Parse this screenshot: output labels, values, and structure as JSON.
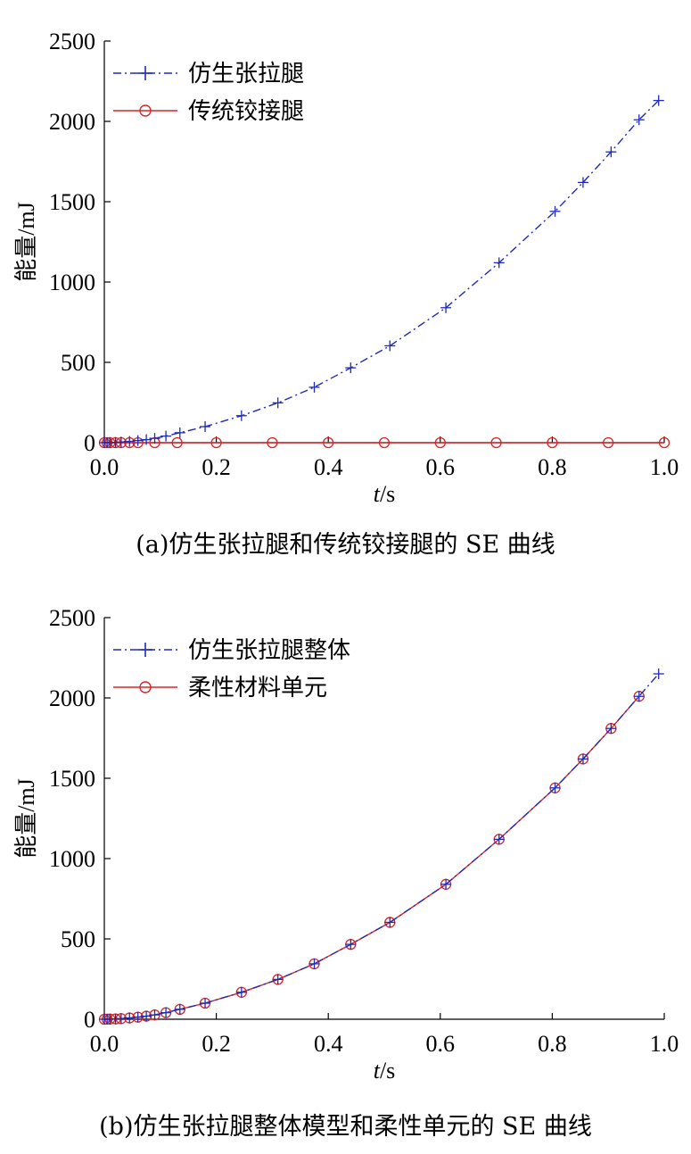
{
  "chart_data": [
    {
      "type": "line",
      "caption": "(a)仿生张拉腿和传统铰接腿的 SE 曲线",
      "xlabel": "t/s",
      "ylabel": "能量/mJ",
      "xlim": [
        0,
        1.0
      ],
      "ylim": [
        0,
        2500
      ],
      "xticks": [
        "0.0",
        "0.2",
        "0.4",
        "0.6",
        "0.8",
        "1.0"
      ],
      "yticks": [
        "0",
        "500",
        "1000",
        "1500",
        "2000",
        "2500"
      ],
      "legend_position": "top-left",
      "series": [
        {
          "name": "仿生张拉腿",
          "color": "#1f2bb5",
          "line_style": "dash-dot",
          "marker": "plus",
          "x": [
            0.0,
            0.005,
            0.01,
            0.02,
            0.03,
            0.045,
            0.06,
            0.075,
            0.09,
            0.11,
            0.135,
            0.18,
            0.245,
            0.31,
            0.375,
            0.44,
            0.51,
            0.61,
            0.705,
            0.805,
            0.855,
            0.905,
            0.955,
            0.99
          ],
          "y": [
            0,
            0.5,
            1,
            2,
            4,
            8,
            13,
            19,
            27,
            41,
            62,
            100,
            168,
            248,
            345,
            466,
            603,
            840,
            1120,
            1440,
            1620,
            1810,
            2010,
            2130
          ]
        },
        {
          "name": "传统铰接腿",
          "color": "#d62728",
          "line_style": "solid",
          "marker": "circle",
          "x": [
            0.0,
            0.005,
            0.01,
            0.02,
            0.03,
            0.045,
            0.06,
            0.09,
            0.13,
            0.2,
            0.3,
            0.4,
            0.5,
            0.6,
            0.7,
            0.8,
            0.9,
            1.0
          ],
          "y": [
            0,
            0,
            0,
            0,
            0,
            0,
            0,
            0,
            0,
            0,
            0,
            0,
            0,
            0,
            0,
            0,
            0,
            0
          ]
        }
      ]
    },
    {
      "type": "line",
      "caption": "(b)仿生张拉腿整体模型和柔性单元的 SE 曲线",
      "xlabel": "t/s",
      "ylabel": "能量/mJ",
      "xlim": [
        0,
        1.0
      ],
      "ylim": [
        0,
        2500
      ],
      "xticks": [
        "0.0",
        "0.2",
        "0.4",
        "0.6",
        "0.8",
        "1.0"
      ],
      "yticks": [
        "0",
        "500",
        "1000",
        "1500",
        "2000",
        "2500"
      ],
      "legend_position": "top-left",
      "series": [
        {
          "name": "仿生张拉腿整体",
          "color": "#1f2bb5",
          "line_style": "dash-dot",
          "marker": "plus",
          "x": [
            0.0,
            0.005,
            0.01,
            0.02,
            0.03,
            0.045,
            0.06,
            0.075,
            0.09,
            0.11,
            0.135,
            0.18,
            0.245,
            0.31,
            0.375,
            0.44,
            0.51,
            0.61,
            0.705,
            0.805,
            0.855,
            0.905,
            0.955,
            0.99
          ],
          "y": [
            0,
            0.5,
            1,
            2,
            4,
            8,
            13,
            19,
            27,
            41,
            62,
            100,
            168,
            248,
            345,
            466,
            603,
            840,
            1120,
            1440,
            1620,
            1810,
            2010,
            2150
          ]
        },
        {
          "name": "柔性材料单元",
          "color": "#d62728",
          "line_style": "solid",
          "marker": "circle",
          "x": [
            0.0,
            0.005,
            0.01,
            0.02,
            0.03,
            0.045,
            0.06,
            0.075,
            0.09,
            0.11,
            0.135,
            0.18,
            0.245,
            0.31,
            0.375,
            0.44,
            0.51,
            0.61,
            0.705,
            0.805,
            0.855,
            0.905,
            0.955
          ],
          "y": [
            0,
            0.5,
            1,
            2,
            4,
            8,
            13,
            19,
            27,
            41,
            62,
            100,
            168,
            248,
            345,
            466,
            603,
            840,
            1120,
            1440,
            1620,
            1810,
            2010
          ]
        }
      ]
    }
  ]
}
